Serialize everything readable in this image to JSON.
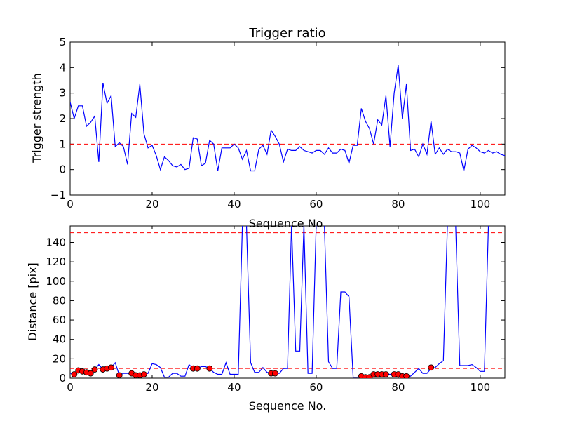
{
  "chart_data": [
    {
      "type": "line",
      "title": "Trigger ratio",
      "xlabel": "Sequence No.",
      "ylabel": "Trigger strength",
      "xlim": [
        0,
        106
      ],
      "ylim": [
        -1,
        5
      ],
      "xticks": [
        0,
        20,
        40,
        60,
        80,
        100
      ],
      "yticks": [
        -1,
        0,
        1,
        2,
        3,
        4,
        5
      ],
      "reference_lines": [
        {
          "y": 1.0,
          "color": "#ff0000",
          "style": "dashed"
        }
      ],
      "series": [
        {
          "color": "#0000ff",
          "x": [
            0,
            1,
            2,
            3,
            4,
            5,
            6,
            7,
            8,
            9,
            10,
            11,
            12,
            13,
            14,
            15,
            16,
            17,
            18,
            19,
            20,
            21,
            22,
            23,
            24,
            25,
            26,
            27,
            28,
            29,
            30,
            31,
            32,
            33,
            34,
            35,
            36,
            37,
            38,
            39,
            40,
            41,
            42,
            43,
            44,
            45,
            46,
            47,
            48,
            49,
            50,
            51,
            52,
            53,
            54,
            55,
            56,
            57,
            58,
            59,
            60,
            61,
            62,
            63,
            64,
            65,
            66,
            67,
            68,
            69,
            70,
            71,
            72,
            73,
            74,
            75,
            76,
            77,
            78,
            79,
            80,
            81,
            82,
            83,
            84,
            85,
            86,
            87,
            88,
            89,
            90,
            91,
            92,
            93,
            94,
            95,
            96,
            97,
            98,
            99,
            100,
            101,
            102,
            103,
            104,
            105,
            106
          ],
          "y": [
            2.65,
            2.0,
            2.5,
            2.5,
            1.7,
            1.85,
            2.1,
            0.3,
            3.4,
            2.6,
            2.9,
            0.9,
            1.05,
            0.9,
            0.2,
            2.2,
            2.05,
            3.35,
            1.4,
            0.85,
            0.95,
            0.55,
            0.0,
            0.5,
            0.35,
            0.15,
            0.1,
            0.2,
            0.0,
            0.05,
            1.25,
            1.2,
            0.15,
            0.25,
            1.15,
            1.0,
            -0.05,
            0.85,
            0.85,
            0.85,
            1.0,
            0.85,
            0.4,
            0.75,
            -0.05,
            -0.05,
            0.8,
            0.95,
            0.6,
            1.55,
            1.3,
            1.0,
            0.3,
            0.8,
            0.75,
            0.75,
            0.9,
            0.75,
            0.7,
            0.65,
            0.75,
            0.75,
            0.6,
            0.85,
            0.65,
            0.65,
            0.8,
            0.75,
            0.25,
            0.95,
            0.95,
            2.4,
            1.9,
            1.6,
            1.0,
            1.95,
            1.75,
            2.9,
            0.9,
            3.0,
            4.1,
            2.0,
            3.35,
            0.75,
            0.8,
            0.5,
            1.0,
            0.6,
            1.9,
            0.6,
            0.85,
            0.6,
            0.8,
            0.7,
            0.7,
            0.65,
            -0.05,
            0.8,
            0.95,
            0.85,
            0.7,
            0.65,
            0.75,
            0.65,
            0.7,
            0.6,
            0.55
          ]
        }
      ]
    },
    {
      "type": "line",
      "title": "",
      "xlabel": "Sequence No.",
      "ylabel": "Distance [pix]",
      "xlim": [
        0,
        106
      ],
      "ylim": [
        0,
        157
      ],
      "xticks": [
        0,
        20,
        40,
        60,
        80,
        100
      ],
      "yticks": [
        0,
        20,
        40,
        60,
        80,
        100,
        120,
        140
      ],
      "reference_lines": [
        {
          "y": 150,
          "color": "#ff0000",
          "style": "dashed"
        },
        {
          "y": 10,
          "color": "#ff0000",
          "style": "dashed"
        }
      ],
      "series": [
        {
          "color": "#0000ff",
          "x": [
            0,
            1,
            2,
            3,
            4,
            5,
            6,
            7,
            8,
            9,
            10,
            11,
            12,
            13,
            14,
            15,
            16,
            17,
            18,
            19,
            20,
            21,
            22,
            23,
            24,
            25,
            26,
            27,
            28,
            29,
            30,
            31,
            32,
            33,
            34,
            35,
            36,
            37,
            38,
            39,
            40,
            41,
            42,
            43,
            44,
            45,
            46,
            47,
            48,
            49,
            50,
            51,
            52,
            53,
            54,
            55,
            56,
            57,
            58,
            59,
            60,
            61,
            62,
            63,
            64,
            65,
            66,
            67,
            68,
            69,
            70,
            71,
            72,
            73,
            74,
            75,
            76,
            77,
            78,
            79,
            80,
            81,
            82,
            83,
            84,
            85,
            86,
            87,
            88,
            89,
            90,
            91,
            92,
            93,
            94,
            95,
            96,
            97,
            98,
            99,
            100,
            101,
            102,
            103,
            104,
            105,
            106
          ],
          "y": [
            5,
            5,
            8,
            7,
            6,
            5,
            9,
            14,
            9,
            10,
            11,
            16,
            3,
            5,
            5,
            4,
            3,
            3,
            4,
            5,
            15,
            14,
            11,
            1,
            1,
            5,
            5,
            2,
            2,
            14,
            10,
            10,
            12,
            12,
            10,
            6,
            4,
            4,
            16,
            4,
            4,
            4,
            158,
            158,
            16,
            6,
            6,
            11,
            6,
            5,
            5,
            5,
            10,
            10,
            158,
            28,
            28,
            158,
            5,
            5,
            158,
            158,
            158,
            17,
            10,
            10,
            89,
            89,
            84,
            1,
            1,
            2,
            2,
            2,
            4,
            4,
            4,
            4,
            4,
            4,
            4,
            4,
            2,
            2,
            6,
            10,
            5,
            5,
            10,
            11,
            15,
            18,
            158,
            158,
            158,
            13,
            13,
            13,
            14,
            11,
            7,
            7,
            158,
            158,
            158,
            158,
            158
          ]
        },
        {
          "color": "#ff0000",
          "marker": "circle",
          "name": "",
          "x": [
            1,
            2,
            3,
            4,
            5,
            6,
            8,
            9,
            10,
            12,
            15,
            16,
            17,
            18,
            30,
            31,
            34,
            49,
            50,
            71,
            72,
            73,
            74,
            75,
            76,
            77,
            79,
            80,
            81,
            82,
            88
          ],
          "y": [
            4,
            8,
            7,
            6,
            5,
            9,
            9,
            10,
            11,
            3,
            5,
            3,
            3,
            4,
            10,
            10,
            10,
            5,
            5,
            2,
            1,
            1,
            4,
            4,
            4,
            4,
            4,
            4,
            2,
            2,
            11
          ]
        }
      ]
    }
  ]
}
